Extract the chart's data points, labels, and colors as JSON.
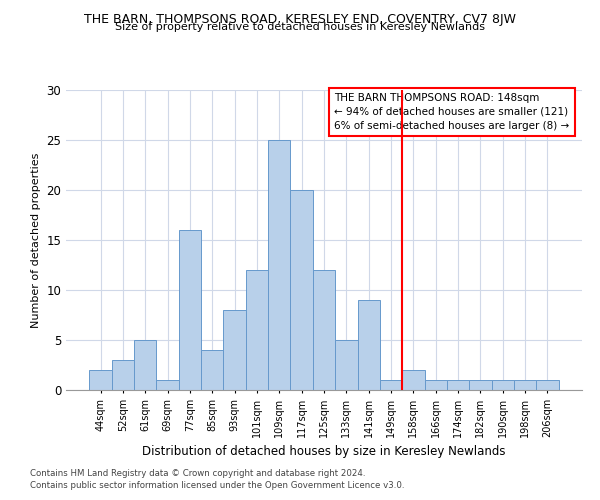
{
  "title1": "THE BARN, THOMPSONS ROAD, KERESLEY END, COVENTRY, CV7 8JW",
  "title2": "Size of property relative to detached houses in Keresley Newlands",
  "xlabel": "Distribution of detached houses by size in Keresley Newlands",
  "ylabel": "Number of detached properties",
  "categories": [
    "44sqm",
    "52sqm",
    "61sqm",
    "69sqm",
    "77sqm",
    "85sqm",
    "93sqm",
    "101sqm",
    "109sqm",
    "117sqm",
    "125sqm",
    "133sqm",
    "141sqm",
    "149sqm",
    "158sqm",
    "166sqm",
    "174sqm",
    "182sqm",
    "190sqm",
    "198sqm",
    "206sqm"
  ],
  "values": [
    2,
    3,
    5,
    1,
    16,
    4,
    8,
    12,
    25,
    20,
    12,
    5,
    9,
    1,
    2,
    1,
    1,
    1,
    1,
    1,
    1
  ],
  "bar_color": "#b8d0ea",
  "bar_edge_color": "#6699cc",
  "grid_color": "#d0d8e8",
  "red_line_index": 13,
  "annotation_text": "THE BARN THOMPSONS ROAD: 148sqm\n← 94% of detached houses are smaller (121)\n6% of semi-detached houses are larger (8) →",
  "footer1": "Contains HM Land Registry data © Crown copyright and database right 2024.",
  "footer2": "Contains public sector information licensed under the Open Government Licence v3.0.",
  "ylim": [
    0,
    30
  ],
  "yticks": [
    0,
    5,
    10,
    15,
    20,
    25,
    30
  ]
}
